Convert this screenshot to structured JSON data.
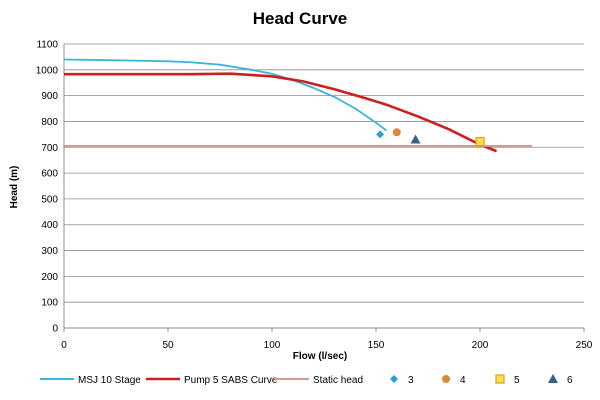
{
  "chart_data": {
    "type": "line",
    "title": "Head Curve",
    "xlabel": "Flow (l/sec)",
    "ylabel": "Head (m)",
    "xlim": [
      0,
      250
    ],
    "ylim": [
      0,
      1100
    ],
    "xticks": [
      0,
      50,
      100,
      150,
      200,
      250
    ],
    "yticks": [
      0,
      100,
      200,
      300,
      400,
      500,
      600,
      700,
      800,
      900,
      1000,
      1100
    ],
    "grid": "horizontal",
    "legend_position": "bottom",
    "series": [
      {
        "name": "MSJ 10 Stage",
        "kind": "line",
        "color": "#3ab5d9",
        "points": [
          [
            0,
            1040
          ],
          [
            25,
            1037
          ],
          [
            50,
            1033
          ],
          [
            60,
            1030
          ],
          [
            75,
            1020
          ],
          [
            90,
            1000
          ],
          [
            100,
            985
          ],
          [
            110,
            960
          ],
          [
            120,
            930
          ],
          [
            130,
            895
          ],
          [
            140,
            850
          ],
          [
            150,
            795
          ],
          [
            155,
            765
          ]
        ]
      },
      {
        "name": "Pump 5 SABS Curve",
        "kind": "line",
        "color": "#cc1f1f",
        "points": [
          [
            0,
            983
          ],
          [
            30,
            983
          ],
          [
            60,
            983
          ],
          [
            80,
            985
          ],
          [
            100,
            975
          ],
          [
            115,
            955
          ],
          [
            130,
            925
          ],
          [
            145,
            890
          ],
          [
            155,
            865
          ],
          [
            170,
            820
          ],
          [
            185,
            770
          ],
          [
            200,
            710
          ],
          [
            208,
            685
          ]
        ]
      },
      {
        "name": "Static head",
        "kind": "line",
        "color": "#d9968f",
        "points": [
          [
            0,
            705
          ],
          [
            225,
            705
          ]
        ]
      },
      {
        "name": "3",
        "kind": "marker",
        "marker": "diamond",
        "color": "#2a9fd6",
        "points": [
          [
            152,
            750
          ]
        ]
      },
      {
        "name": "4",
        "kind": "marker",
        "marker": "circle",
        "color": "#d9883c",
        "points": [
          [
            160,
            758
          ]
        ]
      },
      {
        "name": "5",
        "kind": "marker",
        "marker": "square",
        "color": "#ffe24a",
        "stroke": "#e39a24",
        "points": [
          [
            200,
            722
          ]
        ]
      },
      {
        "name": "6",
        "kind": "marker",
        "marker": "triangle",
        "color": "#3a5f8a",
        "points": [
          [
            169,
            730
          ]
        ]
      }
    ]
  }
}
